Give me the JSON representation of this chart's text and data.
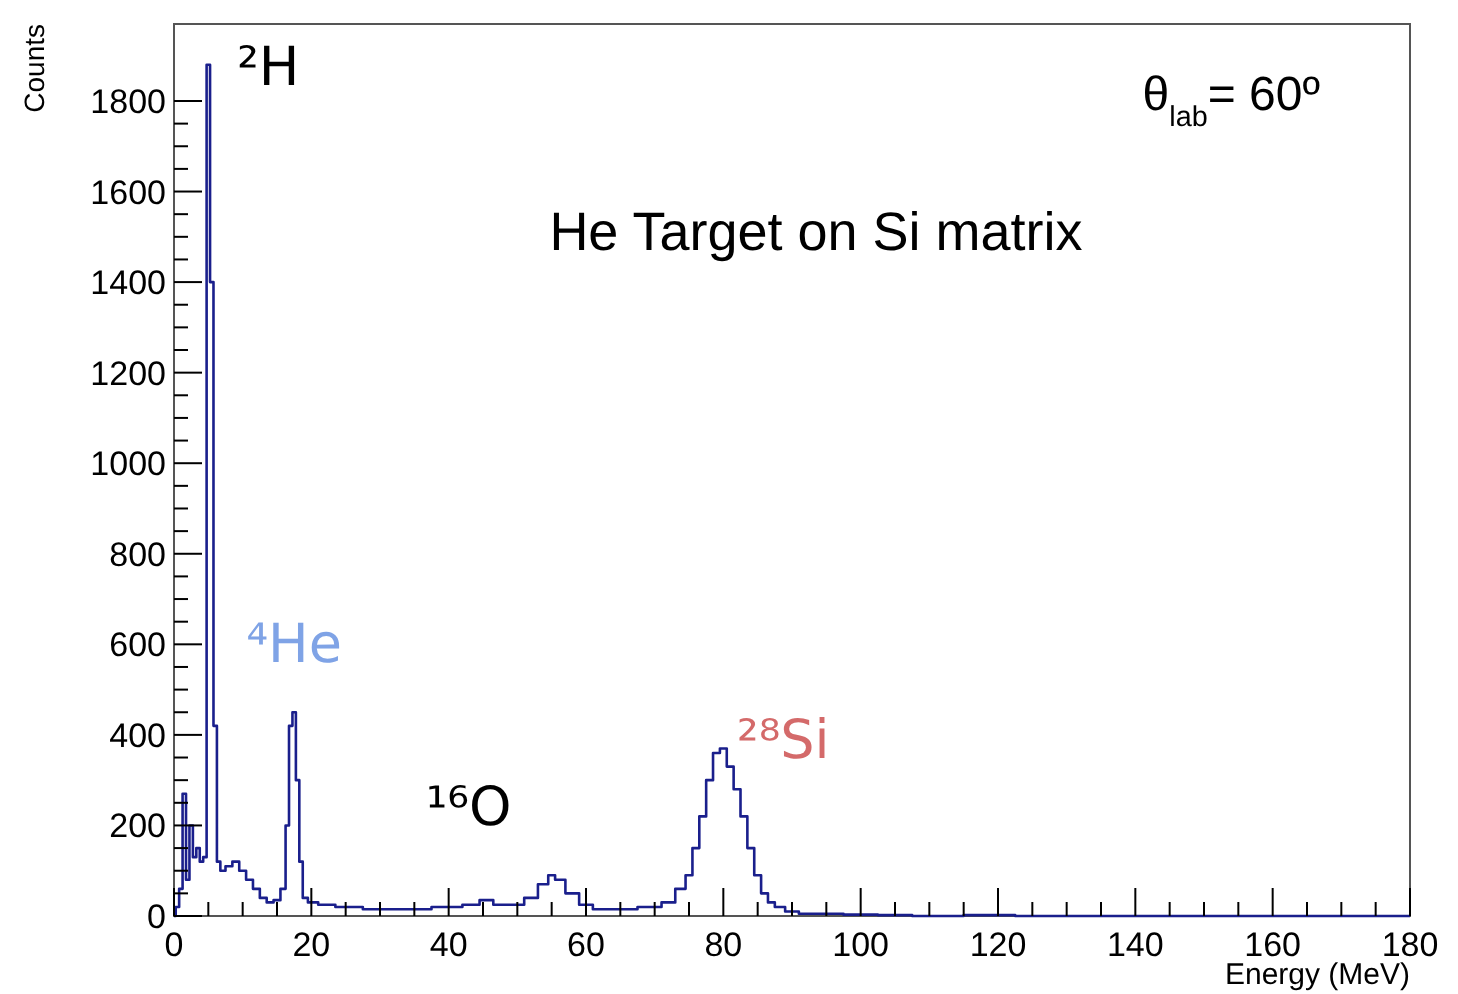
{
  "chart_data": {
    "type": "step",
    "xlabel": "Energy (MeV)",
    "ylabel": "Counts",
    "xlim": [
      0,
      180
    ],
    "ylim": [
      0,
      1970
    ],
    "xticks": [
      0,
      {
        "value": 5,
        "label": null
      },
      {
        "value": 10,
        "label": null
      },
      {
        "value": 15,
        "label": null
      },
      20,
      {
        "value": 25,
        "label": null
      },
      {
        "value": 30,
        "label": null
      },
      {
        "value": 35,
        "label": null
      },
      40,
      {
        "value": 45,
        "label": null
      },
      {
        "value": 50,
        "label": null
      },
      {
        "value": 55,
        "label": null
      },
      60,
      {
        "value": 65,
        "label": null
      },
      {
        "value": 70,
        "label": null
      },
      {
        "value": 75,
        "label": null
      },
      80,
      {
        "value": 85,
        "label": null
      },
      {
        "value": 90,
        "label": null
      },
      {
        "value": 95,
        "label": null
      },
      100,
      {
        "value": 105,
        "label": null
      },
      {
        "value": 110,
        "label": null
      },
      {
        "value": 115,
        "label": null
      },
      120,
      {
        "value": 125,
        "label": null
      },
      {
        "value": 130,
        "label": null
      },
      {
        "value": 135,
        "label": null
      },
      140,
      {
        "value": 145,
        "label": null
      },
      {
        "value": 150,
        "label": null
      },
      {
        "value": 155,
        "label": null
      },
      160,
      {
        "value": 165,
        "label": null
      },
      {
        "value": 170,
        "label": null
      },
      {
        "value": 175,
        "label": null
      },
      180
    ],
    "yticks": [
      0,
      {
        "value": 50,
        "label": null
      },
      {
        "value": 100,
        "label": null
      },
      {
        "value": 150,
        "label": null
      },
      200,
      {
        "value": 250,
        "label": null
      },
      {
        "value": 300,
        "label": null
      },
      {
        "value": 350,
        "label": null
      },
      400,
      {
        "value": 450,
        "label": null
      },
      {
        "value": 500,
        "label": null
      },
      {
        "value": 550,
        "label": null
      },
      600,
      {
        "value": 650,
        "label": null
      },
      {
        "value": 700,
        "label": null
      },
      {
        "value": 750,
        "label": null
      },
      800,
      {
        "value": 850,
        "label": null
      },
      {
        "value": 900,
        "label": null
      },
      {
        "value": 950,
        "label": null
      },
      1000,
      {
        "value": 1050,
        "label": null
      },
      {
        "value": 1100,
        "label": null
      },
      {
        "value": 1150,
        "label": null
      },
      1200,
      {
        "value": 1250,
        "label": null
      },
      {
        "value": 1300,
        "label": null
      },
      {
        "value": 1350,
        "label": null
      },
      1400,
      {
        "value": 1450,
        "label": null
      },
      {
        "value": 1500,
        "label": null
      },
      {
        "value": 1550,
        "label": null
      },
      1600,
      {
        "value": 1650,
        "label": null
      },
      {
        "value": 1700,
        "label": null
      },
      {
        "value": 1750,
        "label": null
      },
      1800
    ],
    "grid": false,
    "series": [
      {
        "color": "#1a1f8c",
        "x": [
          0,
          0.5,
          1,
          1.5,
          2,
          2.5,
          3,
          3.5,
          4,
          4.5,
          5,
          5.5,
          6,
          6.5,
          7,
          8,
          9,
          10,
          11,
          12,
          13,
          14,
          15,
          16,
          16.5,
          17,
          17.5,
          18,
          18.5,
          19,
          20,
          22,
          25,
          30,
          35,
          40,
          44,
          45,
          48,
          50,
          52,
          54,
          55,
          56,
          58,
          60,
          62,
          65,
          70,
          72,
          74,
          75,
          76,
          77,
          78,
          79,
          80,
          81,
          82,
          83,
          84,
          85,
          86,
          87,
          88,
          90,
          92,
          95,
          100,
          105,
          110,
          120,
          125,
          180
        ],
        "values": [
          0,
          20,
          60,
          270,
          80,
          200,
          130,
          150,
          120,
          130,
          1880,
          1400,
          420,
          120,
          100,
          110,
          120,
          100,
          80,
          60,
          40,
          30,
          35,
          60,
          200,
          420,
          450,
          300,
          120,
          40,
          30,
          25,
          20,
          15,
          15,
          20,
          25,
          35,
          25,
          25,
          40,
          70,
          90,
          80,
          50,
          25,
          15,
          15,
          20,
          30,
          60,
          90,
          150,
          220,
          300,
          360,
          370,
          330,
          280,
          220,
          150,
          90,
          50,
          30,
          20,
          10,
          5,
          5,
          3,
          2,
          0,
          2,
          0,
          0
        ]
      }
    ],
    "annotations": [
      {
        "text": "²H",
        "x": 5,
        "y": 1880
      },
      {
        "text": "⁴He",
        "x": 17.5,
        "y": 450
      },
      {
        "text": "¹⁶O",
        "x": 56,
        "y": 90
      },
      {
        "text": "²⁸Si",
        "x": 80,
        "y": 370
      },
      "He Target on Si matrix",
      "θ$_{lab}$= 60º"
    ]
  }
}
